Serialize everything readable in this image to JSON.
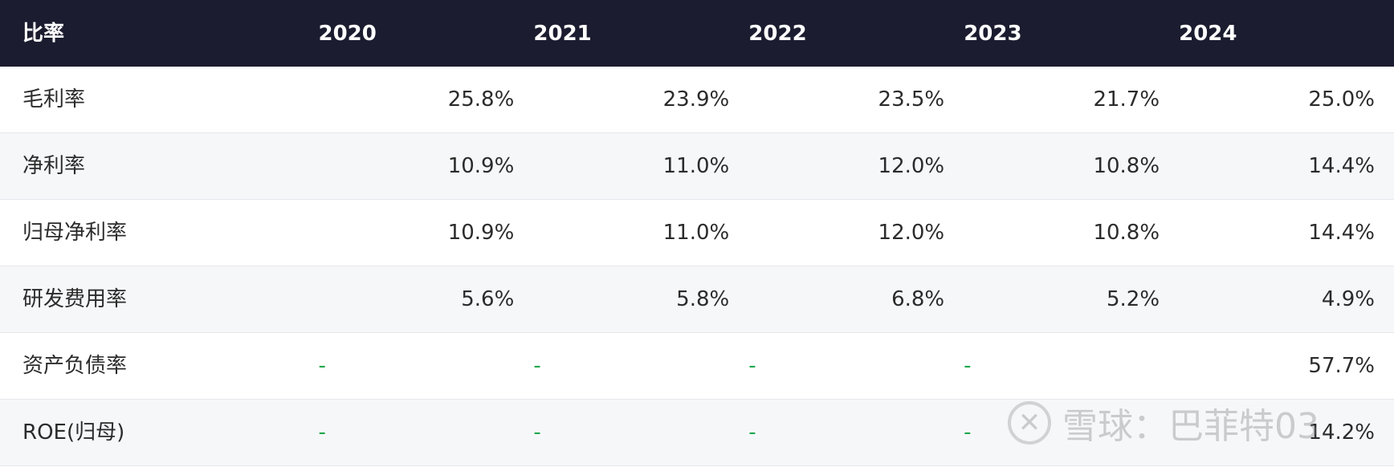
{
  "header": {
    "label": "比率",
    "years": [
      "2020",
      "2021",
      "2022",
      "2023",
      "2024"
    ]
  },
  "rows": [
    {
      "label": "毛利率",
      "values": [
        "25.8%",
        "23.9%",
        "23.5%",
        "21.7%",
        "25.0%"
      ]
    },
    {
      "label": "净利率",
      "values": [
        "10.9%",
        "11.0%",
        "12.0%",
        "10.8%",
        "14.4%"
      ]
    },
    {
      "label": "归母净利率",
      "values": [
        "10.9%",
        "11.0%",
        "12.0%",
        "10.8%",
        "14.4%"
      ]
    },
    {
      "label": "研发费用率",
      "values": [
        "5.6%",
        "5.8%",
        "6.8%",
        "5.2%",
        "4.9%"
      ]
    },
    {
      "label": "资产负债率",
      "values": [
        "-",
        "-",
        "-",
        "-",
        "57.7%"
      ]
    },
    {
      "label": "ROE(归母)",
      "values": [
        "-",
        "-",
        "-",
        "-",
        "14.2%"
      ]
    }
  ],
  "watermark": {
    "text": "雪球：巴菲特03",
    "icon": "xueqiu-logo-icon"
  },
  "colors": {
    "header_bg": "#1b1c2f",
    "dash": "#1aa64a",
    "alt_row": "#f6f7f9"
  }
}
